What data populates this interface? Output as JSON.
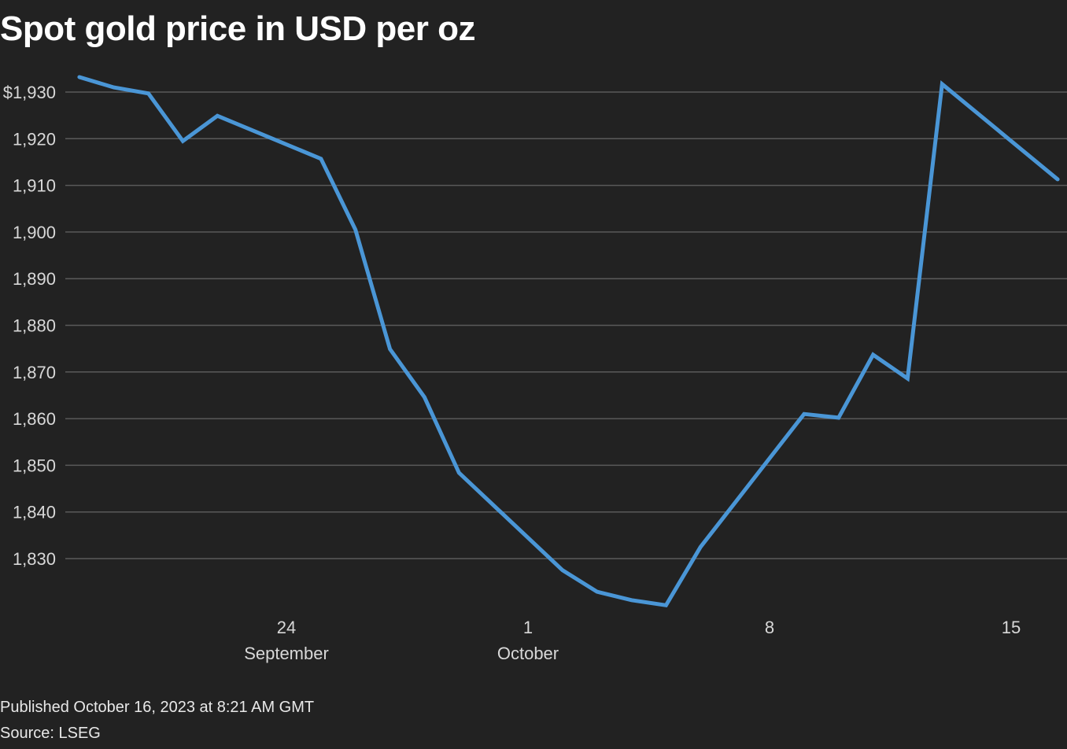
{
  "chart_data": {
    "type": "line",
    "title": "Spot gold price in USD per oz",
    "xlabel": "",
    "ylabel": "",
    "ylim": [
      1820,
      1935
    ],
    "y_ticks": [
      1830,
      1840,
      1850,
      1860,
      1870,
      1880,
      1890,
      1900,
      1910,
      1920,
      1930
    ],
    "y_tick_labels": [
      "1,830",
      "1,840",
      "1,850",
      "1,860",
      "1,870",
      "1,880",
      "1,890",
      "1,900",
      "1,910",
      "1,920",
      "$1,930"
    ],
    "x_ticks": [
      {
        "date": "2023-09-24",
        "label": "24",
        "sublabel": "September"
      },
      {
        "date": "2023-10-01",
        "label": "1",
        "sublabel": "October"
      },
      {
        "date": "2023-10-08",
        "label": "8",
        "sublabel": ""
      },
      {
        "date": "2023-10-15",
        "label": "15",
        "sublabel": ""
      }
    ],
    "grid": true,
    "color": "#4a96d6",
    "series": [
      {
        "name": "Spot gold",
        "points": [
          [
            "2023-09-18",
            1933.2
          ],
          [
            "2023-09-19",
            1931.0
          ],
          [
            "2023-09-20",
            1929.7
          ],
          [
            "2023-09-21",
            1919.5
          ],
          [
            "2023-09-22",
            1924.9
          ],
          [
            "2023-09-25",
            1915.7
          ],
          [
            "2023-09-26",
            1900.5
          ],
          [
            "2023-09-27",
            1874.9
          ],
          [
            "2023-09-28",
            1864.6
          ],
          [
            "2023-09-29",
            1848.4
          ],
          [
            "2023-10-02",
            1827.5
          ],
          [
            "2023-10-03",
            1822.9
          ],
          [
            "2023-10-04",
            1821.1
          ],
          [
            "2023-10-05",
            1820.0
          ],
          [
            "2023-10-06",
            1832.5
          ],
          [
            "2023-10-09",
            1861.0
          ],
          [
            "2023-10-10",
            1860.2
          ],
          [
            "2023-10-11",
            1873.7
          ],
          [
            "2023-10-12",
            1868.6
          ],
          [
            "2023-10-13",
            1931.7
          ],
          [
            "2023-10-16T08:21",
            1911.3
          ]
        ]
      }
    ]
  },
  "footer": {
    "published": "Published October 16, 2023 at 8:21 AM GMT",
    "source": "Source: LSEG"
  }
}
